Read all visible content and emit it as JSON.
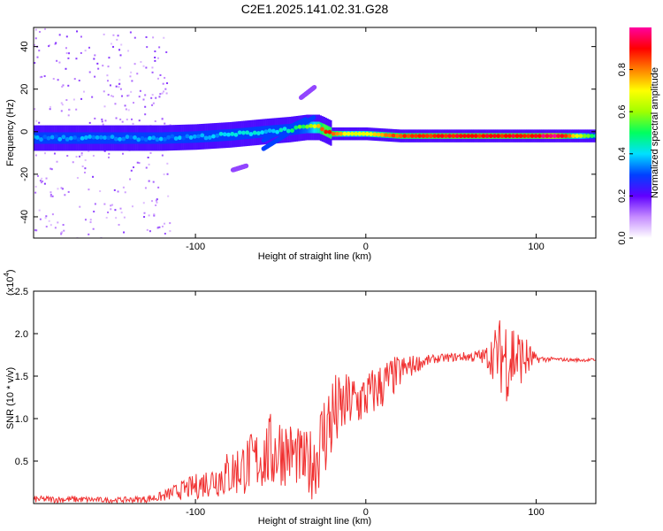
{
  "figure": {
    "title": "C2E1.2025.141.02.31.G28"
  },
  "chart_data": [
    {
      "type": "heatmap",
      "title": "C2E1.2025.141.02.31.G28",
      "xlabel": "Height of straight line (km)",
      "ylabel": "Frequency (Hz)",
      "xlim": [
        -195,
        135
      ],
      "ylim": [
        -50,
        49
      ],
      "xticks": [
        -100,
        0,
        100
      ],
      "yticks": [
        -40,
        -20,
        0,
        20,
        40
      ],
      "colorbar": {
        "label": "Normalized spectral amplitude",
        "range": [
          0,
          1
        ],
        "ticks": [
          "0.0",
          "0.2",
          "0.4",
          "0.6",
          "0.8"
        ],
        "tick_values": [
          0.0,
          0.2,
          0.4,
          0.6,
          0.8
        ],
        "colors": [
          "#ffffff",
          "#c58cff",
          "#6000ff",
          "#0040ff",
          "#00e0ff",
          "#00ff60",
          "#a0ff00",
          "#ffff00",
          "#ff8000",
          "#ff0000",
          "#ff00a0"
        ]
      },
      "ridge": {
        "x": [
          -195,
          -150,
          -120,
          -100,
          -80,
          -60,
          -45,
          -35,
          -28,
          -25,
          -20,
          -10,
          0,
          20,
          50,
          80,
          100,
          110,
          135
        ],
        "freq": [
          -3,
          -3,
          -3,
          -2.5,
          -1.5,
          0,
          1,
          2,
          2,
          1,
          -1,
          -1,
          -1,
          -2,
          -2,
          -2,
          -2,
          -2,
          -2
        ],
        "amplitude": [
          0.35,
          0.35,
          0.35,
          0.35,
          0.4,
          0.4,
          0.45,
          0.55,
          0.75,
          0.9,
          0.85,
          0.65,
          0.7,
          0.85,
          0.9,
          0.9,
          0.9,
          1.0,
          0.45
        ]
      },
      "branches": [
        {
          "x": [
            -60,
            -30
          ],
          "freq": [
            -8,
            7
          ],
          "amplitude": 0.3
        },
        {
          "x": [
            -60,
            -35
          ],
          "freq": [
            -4,
            6
          ],
          "amplitude": 0.3
        },
        {
          "x": [
            -38,
            -30
          ],
          "freq": [
            16,
            21
          ],
          "amplitude": 0.15
        },
        {
          "x": [
            -78,
            -70
          ],
          "freq": [
            -18,
            -16
          ],
          "amplitude": 0.15
        }
      ]
    },
    {
      "type": "line",
      "xlabel": "Height of straight line (km)",
      "ylabel": "SNR (10 * v/v)",
      "y_multiplier": "(x10",
      "y_multiplier_exp": "4",
      "y_multiplier_close": ")",
      "xlim": [
        -195,
        135
      ],
      "ylim": [
        0,
        2.5
      ],
      "xticks": [
        -100,
        0,
        100
      ],
      "yticks": [
        0.5,
        1.0,
        1.5,
        2.0,
        2.5
      ],
      "line_color": "#f03030",
      "series": [
        {
          "x": [
            -195,
            -170,
            -150,
            -130,
            -120,
            -110,
            -100,
            -90,
            -80,
            -70,
            -60,
            -55,
            -50,
            -45,
            -40,
            -35,
            -30,
            -25,
            -20,
            -15,
            -10,
            -5,
            0,
            10,
            20,
            30,
            40,
            50,
            60,
            70,
            75,
            80,
            85,
            90,
            95,
            100,
            110,
            120,
            135
          ],
          "y": [
            0.05,
            0.05,
            0.04,
            0.05,
            0.08,
            0.15,
            0.2,
            0.28,
            0.35,
            0.45,
            0.55,
            0.6,
            0.65,
            0.6,
            0.55,
            0.45,
            0.5,
            0.8,
            1.0,
            1.1,
            1.2,
            1.2,
            1.25,
            1.4,
            1.55,
            1.65,
            1.7,
            1.72,
            1.73,
            1.73,
            1.75,
            1.75,
            1.75,
            1.72,
            1.7,
            1.7,
            1.7,
            1.69,
            1.69
          ],
          "noise": [
            0.04,
            0.04,
            0.03,
            0.04,
            0.06,
            0.1,
            0.15,
            0.2,
            0.3,
            0.35,
            0.4,
            0.5,
            0.45,
            0.4,
            0.35,
            0.4,
            0.45,
            0.55,
            0.6,
            0.4,
            0.35,
            0.35,
            0.3,
            0.3,
            0.2,
            0.1,
            0.05,
            0.05,
            0.06,
            0.1,
            0.3,
            0.5,
            0.6,
            0.35,
            0.25,
            0.05,
            0.02,
            0.02,
            0.02
          ]
        }
      ]
    }
  ]
}
